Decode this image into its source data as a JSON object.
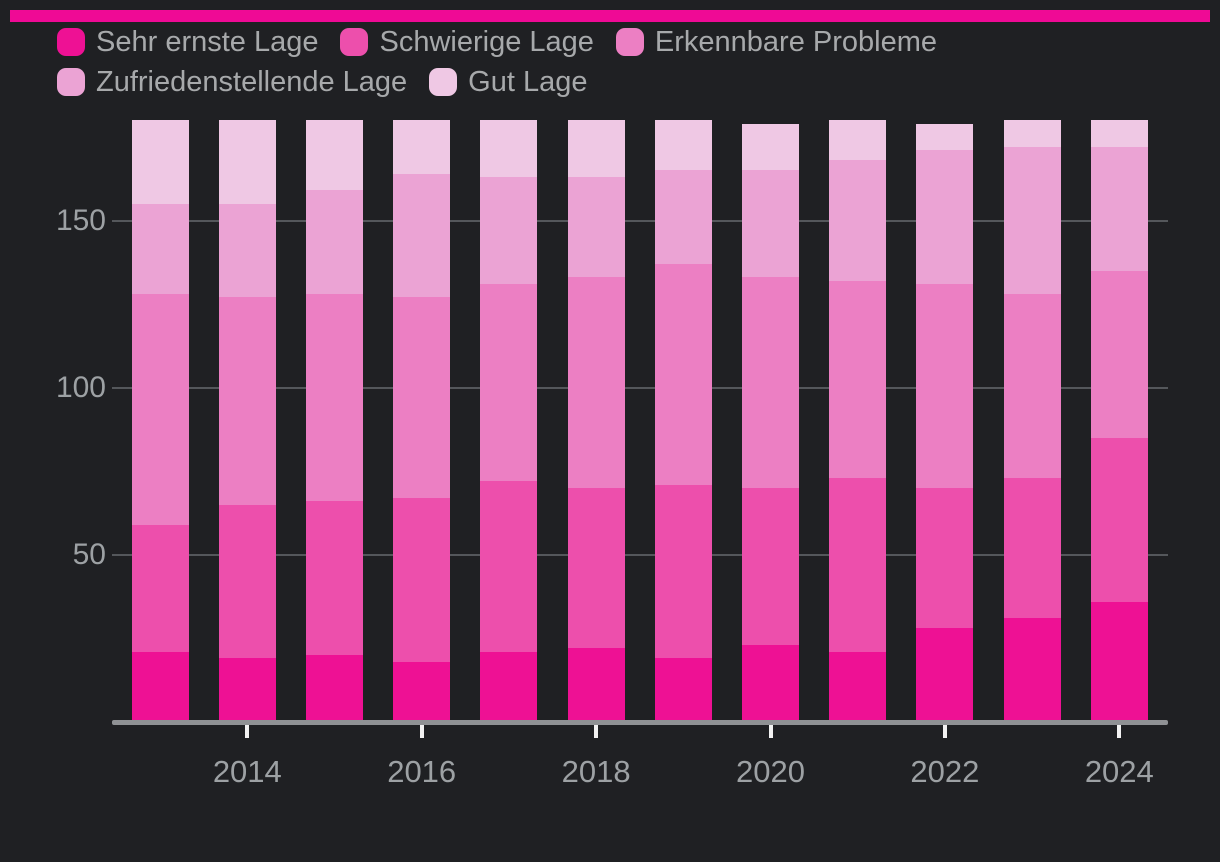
{
  "banner": {
    "color": "#ef0a95"
  },
  "legend": {
    "row1": [
      "Sehr ernste Lage",
      "Schwierige Lage",
      "Erkennbare Probleme"
    ],
    "row2": [
      "Zufriedenstellende Lage",
      "Gut Lage"
    ],
    "text_color": "#a7a9ab"
  },
  "colors": {
    "background": "#1f2023",
    "gridline": "#54575b",
    "axis_line": "#8f9194",
    "tick": "#f2f2f2",
    "axis_text": "#9da1a4"
  },
  "chart_data": {
    "type": "bar",
    "stacked": true,
    "title": "",
    "xlabel": "",
    "ylabel": "",
    "categories": [
      2013,
      2014,
      2015,
      2016,
      2017,
      2018,
      2019,
      2020,
      2021,
      2022,
      2023,
      2024
    ],
    "series": [
      {
        "name": "Sehr ernste Lage",
        "color": "#ee1194",
        "values": [
          21,
          19,
          20,
          18,
          21,
          22,
          19,
          23,
          21,
          28,
          31,
          36
        ]
      },
      {
        "name": "Schwierige Lage",
        "color": "#ed4fac",
        "values": [
          38,
          46,
          46,
          49,
          51,
          48,
          52,
          47,
          52,
          42,
          42,
          49
        ]
      },
      {
        "name": "Erkennbare Probleme",
        "color": "#ec7fc3",
        "values": [
          69,
          62,
          62,
          60,
          59,
          63,
          66,
          63,
          59,
          61,
          55,
          50
        ]
      },
      {
        "name": "Zufriedenstellende Lage",
        "color": "#eba3d4",
        "values": [
          27,
          28,
          31,
          37,
          32,
          30,
          28,
          32,
          36,
          40,
          44,
          37
        ]
      },
      {
        "name": "Gut Lage",
        "color": "#efc8e4",
        "values": [
          25,
          25,
          21,
          16,
          17,
          17,
          15,
          14,
          12,
          8,
          8,
          8
        ]
      }
    ],
    "totals": [
      180,
      180,
      180,
      180,
      180,
      180,
      180,
      179,
      180,
      179,
      180,
      180
    ],
    "y_ticks": [
      50,
      100,
      150
    ],
    "y_tick_labels": [
      "50",
      "100",
      "150"
    ],
    "x_tick_labels": [
      "2014",
      "2016",
      "2018",
      "2020",
      "2022",
      "2024"
    ],
    "x_tick_years": [
      2014,
      2016,
      2018,
      2020,
      2022,
      2024
    ],
    "ylim": [
      0,
      185
    ],
    "grid": "horizontal",
    "legend_position": "top-left"
  }
}
